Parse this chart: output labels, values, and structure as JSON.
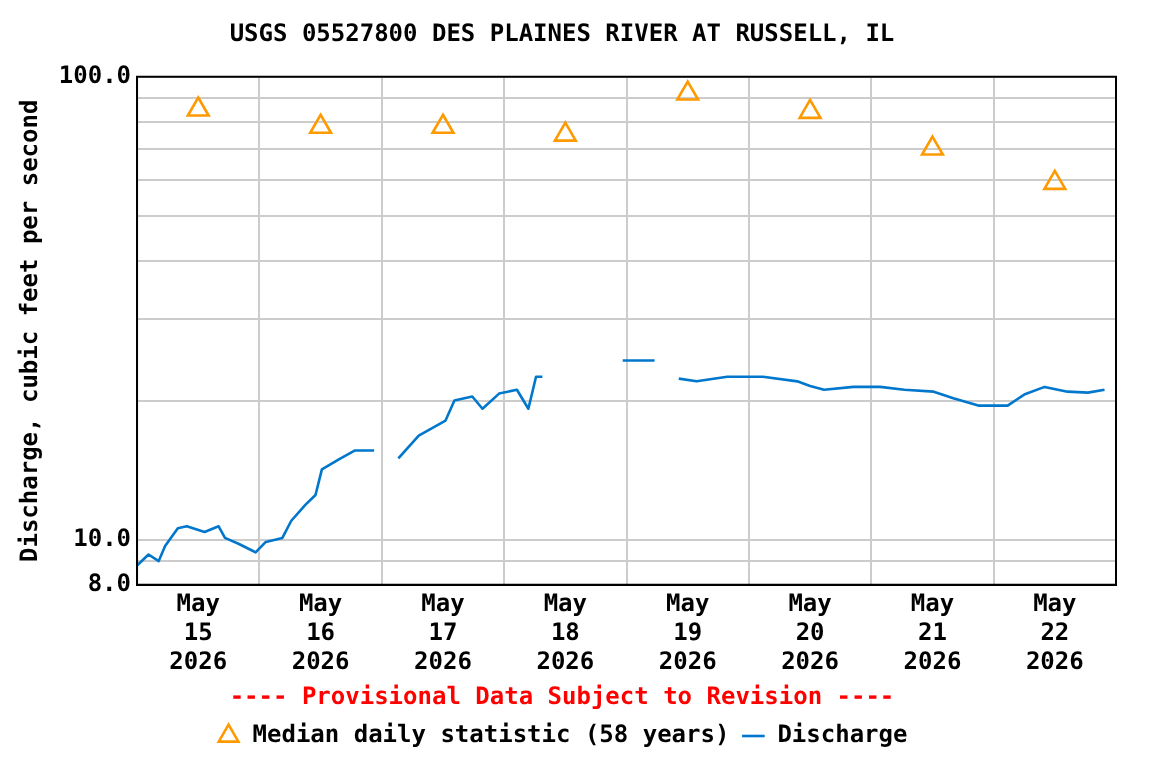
{
  "chart_data": {
    "type": "line",
    "title": "USGS 05527800 DES PLAINES RIVER AT RUSSELL, IL",
    "ylabel": "Discharge, cubic feet per second",
    "annotations": [
      "---- Provisional Data Subject to Revision ----"
    ],
    "xlim": [
      "2026-05-15",
      "2026-05-23"
    ],
    "xticks": [
      {
        "value": "2026-05-15",
        "label": null
      },
      {
        "value": "2026-05-15T12:00",
        "label": "May 15 2026"
      },
      {
        "value": "2026-05-16",
        "label": null
      },
      {
        "value": "2026-05-16T12:00",
        "label": "May 16 2026"
      },
      {
        "value": "2026-05-17",
        "label": null
      },
      {
        "value": "2026-05-17T12:00",
        "label": "May 17 2026"
      },
      {
        "value": "2026-05-18",
        "label": null
      },
      {
        "value": "2026-05-18T12:00",
        "label": "May 18 2026"
      },
      {
        "value": "2026-05-19",
        "label": null
      },
      {
        "value": "2026-05-19T12:00",
        "label": "May 19 2026"
      },
      {
        "value": "2026-05-20",
        "label": null
      },
      {
        "value": "2026-05-20T12:00",
        "label": "May 20 2026"
      },
      {
        "value": "2026-05-21",
        "label": null
      },
      {
        "value": "2026-05-21T12:00",
        "label": "May 21 2026"
      },
      {
        "value": "2026-05-22",
        "label": null
      },
      {
        "value": "2026-05-22T12:00",
        "label": "May 22 2026"
      },
      {
        "value": "2026-05-23",
        "label": null
      }
    ],
    "ylim": [
      8,
      100
    ],
    "yticks": [
      {
        "value": 8,
        "label": "8.0"
      },
      {
        "value": 9,
        "label": null
      },
      {
        "value": 10,
        "label": "10.0"
      },
      {
        "value": 20,
        "label": null
      },
      {
        "value": 30,
        "label": null
      },
      {
        "value": 40,
        "label": null
      },
      {
        "value": 50,
        "label": null
      },
      {
        "value": 60,
        "label": null
      },
      {
        "value": 70,
        "label": null
      },
      {
        "value": 80,
        "label": null
      },
      {
        "value": 90,
        "label": null
      },
      {
        "value": 100,
        "label": "100.0"
      }
    ],
    "log": "y",
    "grid": true,
    "legend": "bottom",
    "series": [
      {
        "name": "Median daily statistic (58 years)",
        "type": "scatter",
        "marker": "triangle",
        "color": "#ff9900",
        "x": [
          "2026-05-15T12:00",
          "2026-05-16T12:00",
          "2026-05-17T12:00",
          "2026-05-18T12:00",
          "2026-05-19T12:00",
          "2026-05-20T12:00",
          "2026-05-21T12:00",
          "2026-05-22T12:00"
        ],
        "values": [
          85,
          78,
          78,
          75,
          92,
          84,
          70,
          59
        ]
      },
      {
        "name": "Discharge",
        "type": "line",
        "marker": "none",
        "color": "#0077cc",
        "x": [
          "2026-05-15T00:00",
          "2026-05-15T02:15",
          "2026-05-15T04:15",
          "2026-05-15T05:30",
          "2026-05-15T08:00",
          "2026-05-15T09:45",
          "2026-05-15T13:15",
          "2026-05-15T16:00",
          "2026-05-15T17:15",
          "2026-05-15T20:00",
          "2026-05-15T23:15",
          "2026-05-16T01:15",
          "2026-05-16T04:30",
          "2026-05-16T06:15",
          "2026-05-16T09:00",
          "2026-05-16T11:00",
          "2026-05-16T12:15",
          "2026-05-16T15:30",
          "2026-05-16T18:45",
          "2026-05-16T22:30",
          "2026-05-17T01:00",
          "2026-05-17T03:15",
          "2026-05-17T07:15",
          "2026-05-17T12:30",
          "2026-05-17T14:15",
          "2026-05-17T17:45",
          "2026-05-17T19:45",
          "2026-05-17T23:00",
          "2026-05-18T02:30",
          "2026-05-18T04:45",
          "2026-05-18T06:15",
          "2026-05-18T07:30",
          "2026-05-18T15:00",
          "2026-05-18T23:15",
          "2026-05-19T05:30",
          "2026-05-19T08:00",
          "2026-05-19T10:15",
          "2026-05-19T13:45",
          "2026-05-19T19:45",
          "2026-05-20T02:45",
          "2026-05-20T09:30",
          "2026-05-20T12:00",
          "2026-05-20T14:45",
          "2026-05-20T20:30",
          "2026-05-21T01:45",
          "2026-05-21T06:30",
          "2026-05-21T12:15",
          "2026-05-21T16:15",
          "2026-05-21T21:00",
          "2026-05-22T02:45",
          "2026-05-22T06:00",
          "2026-05-22T10:00",
          "2026-05-22T14:30",
          "2026-05-22T18:30",
          "2026-05-22T21:45"
        ],
        "values": [
          8.8,
          9.3,
          9.0,
          9.7,
          10.6,
          10.7,
          10.4,
          10.7,
          10.1,
          9.8,
          9.4,
          9.9,
          10.1,
          11.0,
          11.9,
          12.5,
          14.2,
          14.9,
          15.6,
          15.6,
          null,
          15.0,
          16.8,
          18.1,
          20.0,
          20.4,
          19.2,
          20.7,
          21.1,
          19.2,
          22.5,
          22.5,
          null,
          24.4,
          24.4,
          null,
          22.3,
          22.0,
          22.5,
          22.5,
          22.0,
          21.5,
          21.1,
          21.4,
          21.4,
          21.1,
          20.9,
          20.2,
          19.5,
          19.5,
          20.6,
          21.4,
          20.9,
          20.8,
          21.1
        ]
      }
    ]
  }
}
